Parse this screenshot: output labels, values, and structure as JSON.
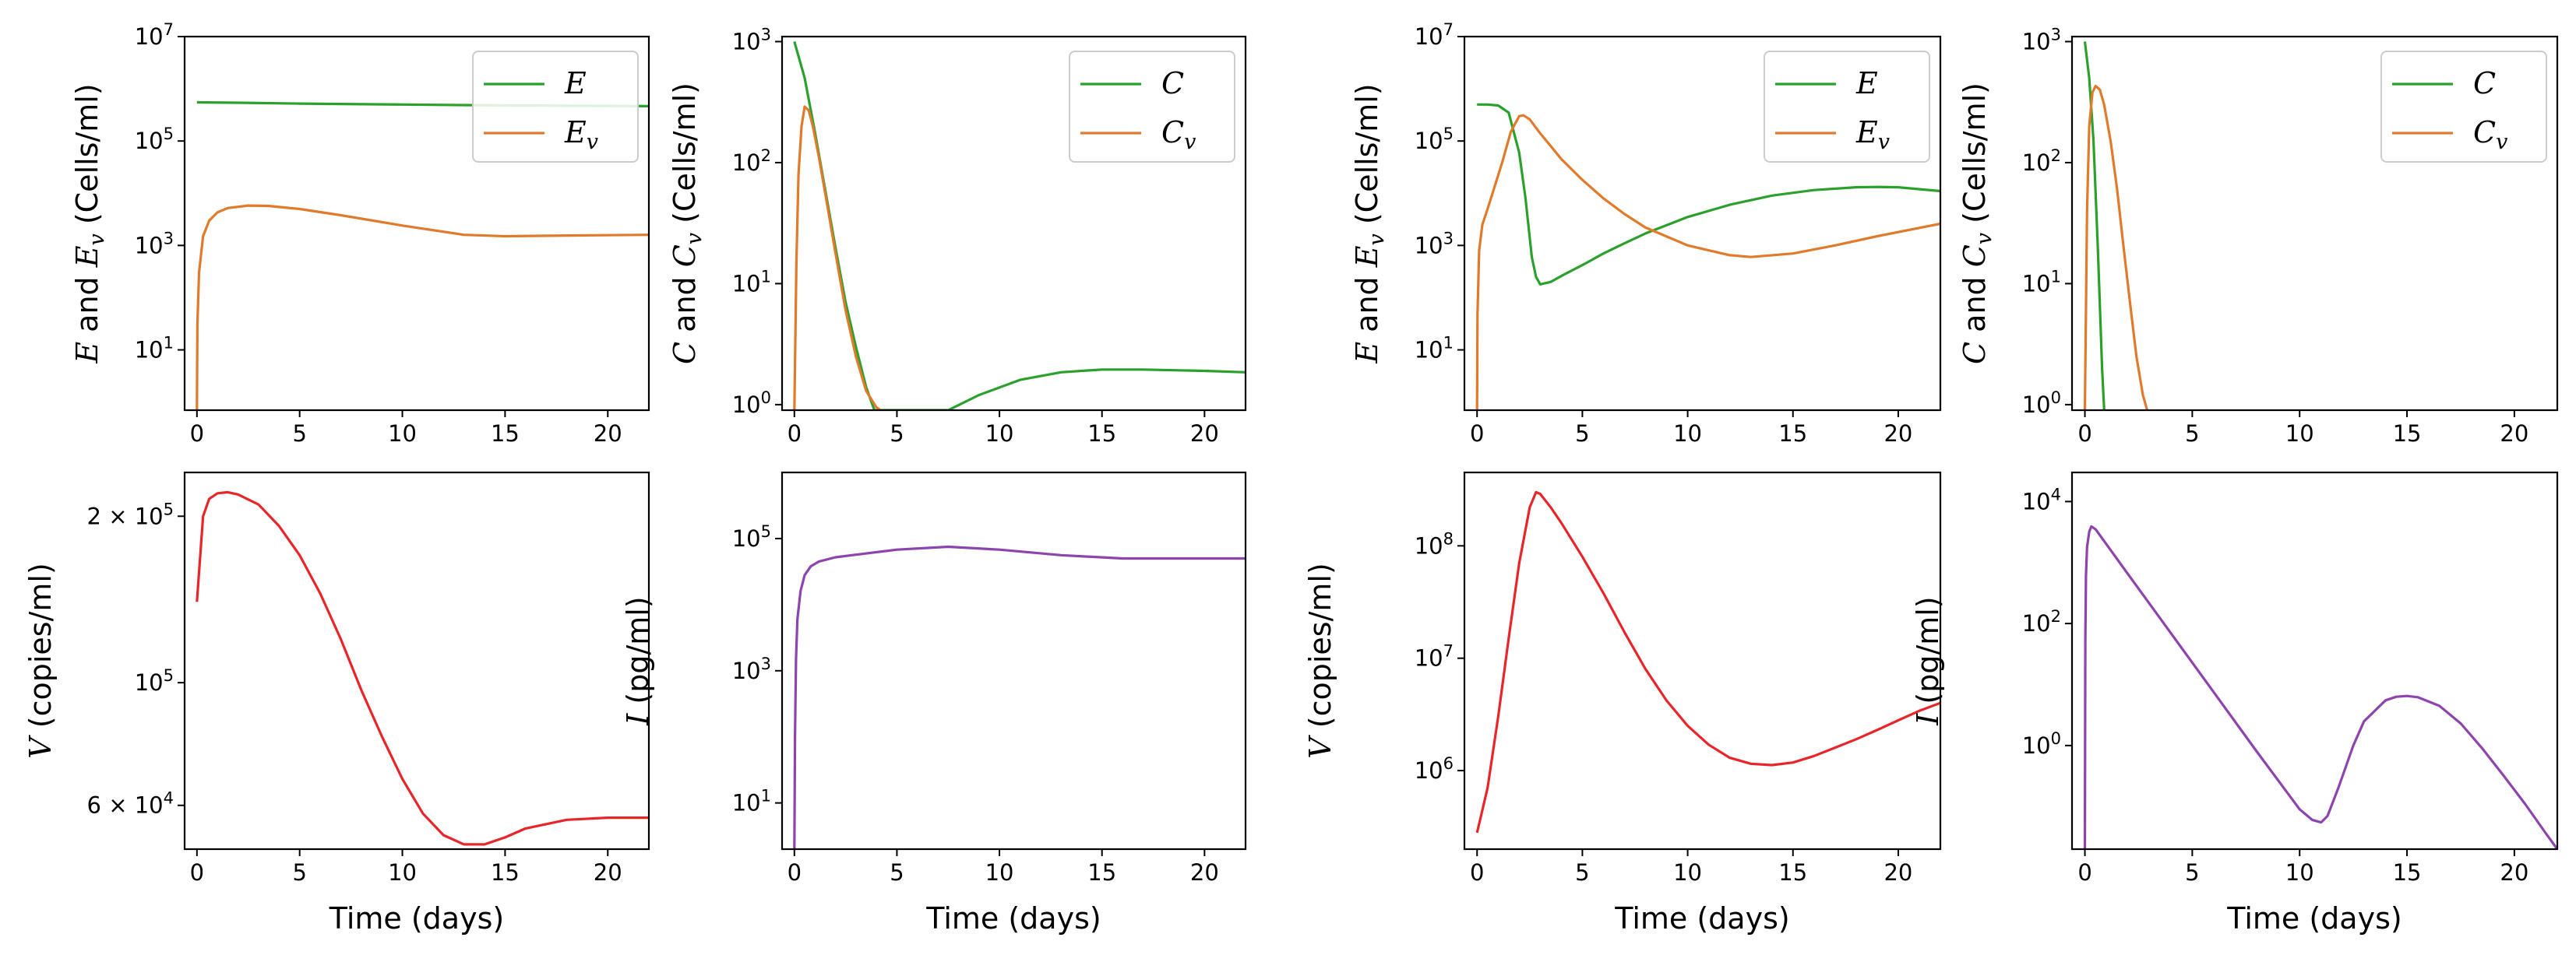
{
  "colors": {
    "green": "#2ca02c",
    "orange": "#e07b2c",
    "red": "#e8262a",
    "purple": "#8e44ad"
  },
  "chart_data": [
    {
      "type": "line",
      "yscale": "log",
      "xlabel": "",
      "ylabel": "$E$ and $E_v$ (Cells/ml)",
      "ylabel_parts": [
        [
          "E",
          "i"
        ],
        [
          " and ",
          "n"
        ],
        [
          "E",
          "i"
        ],
        [
          "v",
          "is"
        ],
        [
          " (Cells/ml)",
          "n"
        ]
      ],
      "xlim": [
        -0.6,
        22
      ],
      "ylim": [
        0.7,
        10000000
      ],
      "xticks": [
        0,
        5,
        10,
        15,
        20
      ],
      "yticks": [
        {
          "v": 10,
          "b": "10",
          "e": "1"
        },
        {
          "v": 1000,
          "b": "10",
          "e": "3"
        },
        {
          "v": 100000,
          "b": "10",
          "e": "5"
        },
        {
          "v": 10000000,
          "b": "10",
          "e": "7"
        }
      ],
      "legend": "top-right",
      "series": [
        {
          "name": "E",
          "sub": "",
          "color": "green",
          "x": [
            0,
            2,
            5,
            10,
            15,
            20,
            22
          ],
          "y": [
            550000,
            540000,
            520000,
            500000,
            480000,
            470000,
            465000
          ]
        },
        {
          "name": "E",
          "sub": "v",
          "color": "orange",
          "x": [
            0,
            0.02,
            0.1,
            0.3,
            0.6,
            1,
            1.5,
            2.5,
            3.5,
            5,
            7,
            10,
            13,
            15,
            18,
            22
          ],
          "y": [
            0.7,
            30,
            300,
            1500,
            3000,
            4300,
            5200,
            5800,
            5700,
            5000,
            3800,
            2400,
            1600,
            1500,
            1550,
            1600
          ]
        }
      ]
    },
    {
      "type": "line",
      "yscale": "log",
      "xlabel": "",
      "ylabel": "$C$ and $C_v$ (Cells/ml)",
      "ylabel_parts": [
        [
          "C",
          "i"
        ],
        [
          " and ",
          "n"
        ],
        [
          "C",
          "i"
        ],
        [
          "v",
          "is"
        ],
        [
          " (Cells/ml)",
          "n"
        ]
      ],
      "xlim": [
        -0.6,
        22
      ],
      "ylim": [
        0.9,
        1100
      ],
      "xticks": [
        0,
        5,
        10,
        15,
        20
      ],
      "yticks": [
        {
          "v": 1,
          "b": "10",
          "e": "0"
        },
        {
          "v": 10,
          "b": "10",
          "e": "1"
        },
        {
          "v": 100,
          "b": "10",
          "e": "2"
        },
        {
          "v": 1000,
          "b": "10",
          "e": "3"
        }
      ],
      "legend": "top-right",
      "series": [
        {
          "name": "C",
          "sub": "",
          "color": "green",
          "x": [
            0,
            0.5,
            1,
            1.5,
            2,
            2.5,
            3,
            3.5,
            3.9,
            7.5,
            9,
            11,
            13,
            15,
            17,
            20,
            22
          ],
          "y": [
            1000,
            500,
            180,
            60,
            20,
            7,
            3,
            1.4,
            0.9,
            0.9,
            1.2,
            1.6,
            1.85,
            1.95,
            1.95,
            1.9,
            1.85
          ]
        },
        {
          "name": "C",
          "sub": "v",
          "color": "orange",
          "x": [
            0,
            0.1,
            0.2,
            0.35,
            0.5,
            0.7,
            0.9,
            1.2,
            1.6,
            2,
            2.5,
            3,
            3.5,
            4,
            4.2
          ],
          "y": [
            0.9,
            15,
            80,
            200,
            290,
            270,
            200,
            110,
            45,
            18,
            6,
            2.5,
            1.3,
            0.95,
            0.9
          ]
        }
      ]
    },
    {
      "type": "line",
      "yscale": "log",
      "xlabel": "",
      "ylabel": "$E$ and $E_v$ (Cells/ml)",
      "ylabel_parts": [
        [
          "E",
          "i"
        ],
        [
          " and ",
          "n"
        ],
        [
          "E",
          "i"
        ],
        [
          "v",
          "is"
        ],
        [
          " (Cells/ml)",
          "n"
        ]
      ],
      "xlim": [
        -0.6,
        22
      ],
      "ylim": [
        0.7,
        10000000
      ],
      "xticks": [
        0,
        5,
        10,
        15,
        20
      ],
      "yticks": [
        {
          "v": 10,
          "b": "10",
          "e": "1"
        },
        {
          "v": 1000,
          "b": "10",
          "e": "3"
        },
        {
          "v": 100000,
          "b": "10",
          "e": "5"
        },
        {
          "v": 10000000,
          "b": "10",
          "e": "7"
        }
      ],
      "legend": "top-right",
      "series": [
        {
          "name": "E",
          "sub": "",
          "color": "green",
          "x": [
            0,
            0.5,
            1,
            1.5,
            2,
            2.3,
            2.6,
            2.8,
            3,
            3.5,
            4,
            5,
            6,
            7,
            8,
            10,
            12,
            14,
            16,
            18,
            19,
            20,
            22
          ],
          "y": [
            500000,
            500000,
            480000,
            350000,
            60000,
            8000,
            600,
            250,
            180,
            200,
            260,
            420,
            700,
            1100,
            1700,
            3500,
            6000,
            9000,
            11500,
            13000,
            13200,
            13000,
            11000
          ]
        },
        {
          "name": "E",
          "sub": "v",
          "color": "orange",
          "x": [
            0,
            0.02,
            0.1,
            0.25,
            0.5,
            0.8,
            1.2,
            1.6,
            2,
            2.2,
            2.5,
            3,
            3.5,
            4,
            5,
            6,
            7,
            8,
            10,
            12,
            13,
            15,
            17,
            19,
            22
          ],
          "y": [
            0.7,
            50,
            800,
            2500,
            5000,
            12000,
            40000,
            150000,
            300000,
            310000,
            260000,
            140000,
            80000,
            45000,
            18000,
            8000,
            4000,
            2200,
            1000,
            650,
            600,
            700,
            1000,
            1500,
            2600
          ]
        }
      ]
    },
    {
      "type": "line",
      "yscale": "log",
      "xlabel": "",
      "ylabel": "$C$ and $C_v$ (Cells/ml)",
      "ylabel_parts": [
        [
          "C",
          "i"
        ],
        [
          " and ",
          "n"
        ],
        [
          "C",
          "i"
        ],
        [
          "v",
          "is"
        ],
        [
          " (Cells/ml)",
          "n"
        ]
      ],
      "xlim": [
        -0.6,
        22
      ],
      "ylim": [
        0.9,
        1100
      ],
      "xticks": [
        0,
        5,
        10,
        15,
        20
      ],
      "yticks": [
        {
          "v": 1,
          "b": "10",
          "e": "0"
        },
        {
          "v": 10,
          "b": "10",
          "e": "1"
        },
        {
          "v": 100,
          "b": "10",
          "e": "2"
        },
        {
          "v": 1000,
          "b": "10",
          "e": "3"
        }
      ],
      "legend": "top-right",
      "series": [
        {
          "name": "C",
          "sub": "",
          "color": "green",
          "x": [
            0,
            0.2,
            0.4,
            0.6,
            0.8,
            0.9
          ],
          "y": [
            1000,
            500,
            150,
            20,
            2,
            0.9
          ]
        },
        {
          "name": "C",
          "sub": "v",
          "color": "orange",
          "x": [
            0,
            0.1,
            0.2,
            0.35,
            0.5,
            0.7,
            0.9,
            1.2,
            1.5,
            1.8,
            2.1,
            2.4,
            2.7,
            2.9
          ],
          "y": [
            0.9,
            40,
            200,
            380,
            430,
            400,
            300,
            150,
            60,
            20,
            7,
            2.5,
            1.2,
            0.9
          ]
        }
      ]
    },
    {
      "type": "line",
      "yscale": "log",
      "xlabel": "Time (days)",
      "ylabel": "$V$ (copies/ml)",
      "ylabel_parts": [
        [
          "V",
          "i"
        ],
        [
          " (copies/ml)",
          "n"
        ]
      ],
      "xlim": [
        -0.6,
        22
      ],
      "ylim": [
        50000,
        240000
      ],
      "xticks": [
        0,
        5,
        10,
        15,
        20
      ],
      "yticks": [
        {
          "v": 60000,
          "pre": "6 × ",
          "b": "10",
          "e": "4"
        },
        {
          "v": 100000,
          "b": "10",
          "e": "5"
        },
        {
          "v": 200000,
          "pre": "2 × ",
          "b": "10",
          "e": "5"
        }
      ],
      "legend": "none",
      "series": [
        {
          "name": "V",
          "sub": "",
          "color": "red",
          "x": [
            0,
            0.3,
            0.6,
            1,
            1.5,
            2,
            3,
            4,
            5,
            6,
            7,
            8,
            9,
            10,
            11,
            12,
            13,
            14,
            15,
            16,
            18,
            20,
            22
          ],
          "y": [
            140000,
            200000,
            215000,
            220000,
            221000,
            219000,
            210000,
            192000,
            170000,
            145000,
            120000,
            97000,
            80000,
            67000,
            58000,
            53000,
            51000,
            51000,
            52500,
            54500,
            56500,
            57000,
            57000
          ]
        }
      ]
    },
    {
      "type": "line",
      "yscale": "log",
      "xlabel": "Time (days)",
      "ylabel": "$I$ (pg/ml)",
      "ylabel_parts": [
        [
          "I",
          "i"
        ],
        [
          " (pg/ml)",
          "n"
        ]
      ],
      "xlim": [
        -0.6,
        22
      ],
      "ylim": [
        2,
        1000000
      ],
      "xticks": [
        0,
        5,
        10,
        15,
        20
      ],
      "yticks": [
        {
          "v": 10,
          "b": "10",
          "e": "1"
        },
        {
          "v": 1000,
          "b": "10",
          "e": "3"
        },
        {
          "v": 100000,
          "b": "10",
          "e": "5"
        }
      ],
      "legend": "none",
      "series": [
        {
          "name": "I",
          "sub": "",
          "color": "purple",
          "x": [
            0,
            0.03,
            0.08,
            0.15,
            0.3,
            0.5,
            0.8,
            1.2,
            2,
            3,
            5,
            7.5,
            10,
            13,
            16,
            20,
            22
          ],
          "y": [
            2,
            100,
            1500,
            6000,
            16000,
            28000,
            38000,
            45000,
            52000,
            57000,
            68000,
            75000,
            68000,
            56000,
            50000,
            50000,
            50000
          ]
        }
      ]
    },
    {
      "type": "line",
      "yscale": "log",
      "xlabel": "Time (days)",
      "ylabel": "$V$ (copies/ml)",
      "ylabel_parts": [
        [
          "V",
          "i"
        ],
        [
          " (copies/ml)",
          "n"
        ]
      ],
      "xlim": [
        -0.6,
        22
      ],
      "ylim": [
        200000,
        450000000
      ],
      "xticks": [
        0,
        5,
        10,
        15,
        20
      ],
      "yticks": [
        {
          "v": 1000000,
          "b": "10",
          "e": "6"
        },
        {
          "v": 10000000,
          "b": "10",
          "e": "7"
        },
        {
          "v": 100000000,
          "b": "10",
          "e": "8"
        }
      ],
      "legend": "none",
      "series": [
        {
          "name": "V",
          "sub": "",
          "color": "red",
          "x": [
            0,
            0.5,
            1,
            1.5,
            2,
            2.5,
            2.8,
            3,
            3.5,
            4,
            5,
            6,
            7,
            8,
            9,
            10,
            11,
            12,
            13,
            14,
            15,
            16,
            17,
            18,
            19,
            20,
            21,
            22
          ],
          "y": [
            280000,
            700000,
            3000000,
            15000000,
            70000000,
            220000000,
            300000000,
            290000000,
            220000000,
            160000000,
            80000000,
            38000000,
            17000000,
            8000000,
            4200000,
            2500000,
            1700000,
            1300000,
            1150000,
            1120000,
            1180000,
            1350000,
            1600000,
            1900000,
            2300000,
            2800000,
            3400000,
            4000000
          ]
        }
      ]
    },
    {
      "type": "line",
      "yscale": "log",
      "xlabel": "Time (days)",
      "ylabel": "$I$ (pg/ml)",
      "ylabel_parts": [
        [
          "I",
          "i"
        ],
        [
          " (pg/ml)",
          "n"
        ]
      ],
      "xlim": [
        -0.6,
        22
      ],
      "ylim": [
        0.02,
        30000
      ],
      "xticks": [
        0,
        5,
        10,
        15,
        20
      ],
      "yticks": [
        {
          "v": 1,
          "b": "10",
          "e": "0"
        },
        {
          "v": 100,
          "b": "10",
          "e": "2"
        },
        {
          "v": 10000,
          "b": "10",
          "e": "4"
        }
      ],
      "legend": "none",
      "series": [
        {
          "name": "I",
          "sub": "",
          "color": "purple",
          "x": [
            0,
            0.02,
            0.05,
            0.1,
            0.2,
            0.3,
            0.5,
            1,
            2,
            4,
            6,
            8,
            10,
            10.6,
            11,
            11.3,
            11.8,
            12.5,
            13,
            14,
            14.5,
            15,
            15.5,
            16.5,
            17.5,
            18.5,
            19.5,
            20.5,
            21.5,
            22
          ],
          "y": [
            0.02,
            50,
            600,
            1800,
            3200,
            3900,
            3500,
            2000,
            650,
            70,
            7.5,
            0.8,
            0.09,
            0.06,
            0.055,
            0.07,
            0.2,
            1,
            2.5,
            5.5,
            6.3,
            6.5,
            6.2,
            4.5,
            2.3,
            0.9,
            0.32,
            0.11,
            0.035,
            0.02
          ]
        }
      ]
    }
  ]
}
